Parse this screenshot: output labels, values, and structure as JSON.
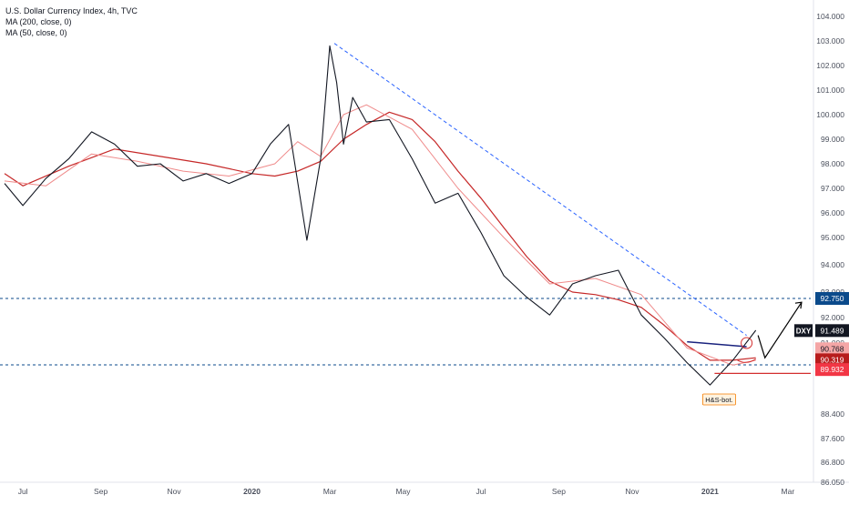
{
  "legend": {
    "title": "U.S. Dollar Currency Index, 4h, TVC",
    "ma200": "MA (200, close, 0)",
    "ma50": "MA (50, close, 0)"
  },
  "chart_data": {
    "type": "line",
    "title": "U.S. Dollar Currency Index, 4h, TVC",
    "ylim": [
      86.05,
      104.3
    ],
    "y_ticks": [
      "104.000",
      "103.000",
      "102.000",
      "101.000",
      "100.000",
      "99.000",
      "98.000",
      "97.000",
      "96.000",
      "95.000",
      "94.000",
      "93.000",
      "92.000",
      "91.000",
      "90.000",
      "88.400",
      "87.600",
      "86.800",
      "86.050"
    ],
    "x_labels": [
      "Jul",
      "Sep",
      "Nov",
      "2020",
      "Mar",
      "May",
      "Jul",
      "Sep",
      "Nov",
      "2021",
      "Mar"
    ],
    "grid": false,
    "series": [
      {
        "name": "DXY",
        "x": [
          2019.46,
          2019.5,
          2019.55,
          2019.6,
          2019.65,
          2019.7,
          2019.75,
          2019.8,
          2019.85,
          2019.9,
          2019.95,
          2020.0,
          2020.04,
          2020.08,
          2020.12,
          2020.15,
          2020.17,
          2020.185,
          2020.2,
          2020.22,
          2020.25,
          2020.3,
          2020.35,
          2020.4,
          2020.45,
          2020.5,
          2020.55,
          2020.6,
          2020.65,
          2020.7,
          2020.75,
          2020.8,
          2020.85,
          2020.9,
          2020.95,
          2021.0,
          2021.05,
          2021.1
        ],
        "y": [
          97.2,
          96.3,
          97.4,
          98.2,
          99.3,
          98.8,
          97.9,
          98.0,
          97.3,
          97.6,
          97.2,
          97.6,
          98.8,
          99.6,
          94.9,
          98.2,
          102.8,
          101.3,
          98.8,
          100.7,
          99.7,
          99.8,
          98.2,
          96.4,
          96.8,
          95.2,
          93.6,
          92.8,
          92.1,
          93.3,
          93.6,
          93.8,
          92.1,
          91.2,
          90.2,
          89.4,
          90.3,
          91.5
        ]
      },
      {
        "name": "MA (50, close, 0)",
        "x": [
          2019.46,
          2019.55,
          2019.65,
          2019.75,
          2019.85,
          2019.95,
          2020.05,
          2020.1,
          2020.15,
          2020.2,
          2020.25,
          2020.3,
          2020.35,
          2020.45,
          2020.55,
          2020.65,
          2020.75,
          2020.85,
          2020.95,
          2021.05,
          2021.1
        ],
        "y": [
          97.3,
          97.1,
          98.4,
          98.1,
          97.7,
          97.5,
          98.0,
          98.9,
          98.3,
          100.0,
          100.4,
          99.9,
          99.4,
          97.0,
          95.0,
          93.3,
          93.5,
          92.9,
          90.8,
          90.1,
          90.3
        ]
      },
      {
        "name": "MA (200, close, 0)",
        "x": [
          2019.46,
          2019.5,
          2019.6,
          2019.7,
          2019.8,
          2019.9,
          2020.0,
          2020.05,
          2020.1,
          2020.15,
          2020.2,
          2020.25,
          2020.3,
          2020.35,
          2020.4,
          2020.45,
          2020.5,
          2020.55,
          2020.6,
          2020.65,
          2020.7,
          2020.75,
          2020.8,
          2020.85,
          2020.9,
          2020.95,
          2021.0,
          2021.05,
          2021.1
        ],
        "y": [
          97.6,
          97.1,
          97.9,
          98.6,
          98.3,
          98.0,
          97.6,
          97.5,
          97.7,
          98.1,
          99.0,
          99.6,
          100.1,
          99.8,
          98.9,
          97.7,
          96.6,
          95.4,
          94.3,
          93.4,
          93.0,
          92.9,
          92.7,
          92.4,
          91.7,
          90.9,
          90.3,
          90.3,
          90.4
        ]
      }
    ],
    "annotations": {
      "levels": [
        {
          "price": 92.75,
          "label": "92.750",
          "color": "#0b4a8b"
        },
        {
          "price": 90.109,
          "label": "90.109",
          "color": "#0b4a8b"
        }
      ],
      "badges": [
        {
          "price": 91.489,
          "label": "DXY",
          "value": "91.489",
          "color": "#131722"
        },
        {
          "price": 90.768,
          "label": "",
          "value": "90.768",
          "color": "#f4a6a6"
        },
        {
          "price": 90.319,
          "label": "",
          "value": "90.319",
          "color": "#b71c1c"
        },
        {
          "price": 89.932,
          "label": "",
          "value": "89.932",
          "color": "#f23645"
        }
      ],
      "note": "H&S-bot."
    },
    "colors": {
      "price": "#131722",
      "ma50": "#ef8a8a",
      "ma200": "#c62828",
      "trendline": "#2962ff",
      "neckline": "#1a237e",
      "level": "#0b4a8b",
      "support": "#d32f2f"
    }
  }
}
